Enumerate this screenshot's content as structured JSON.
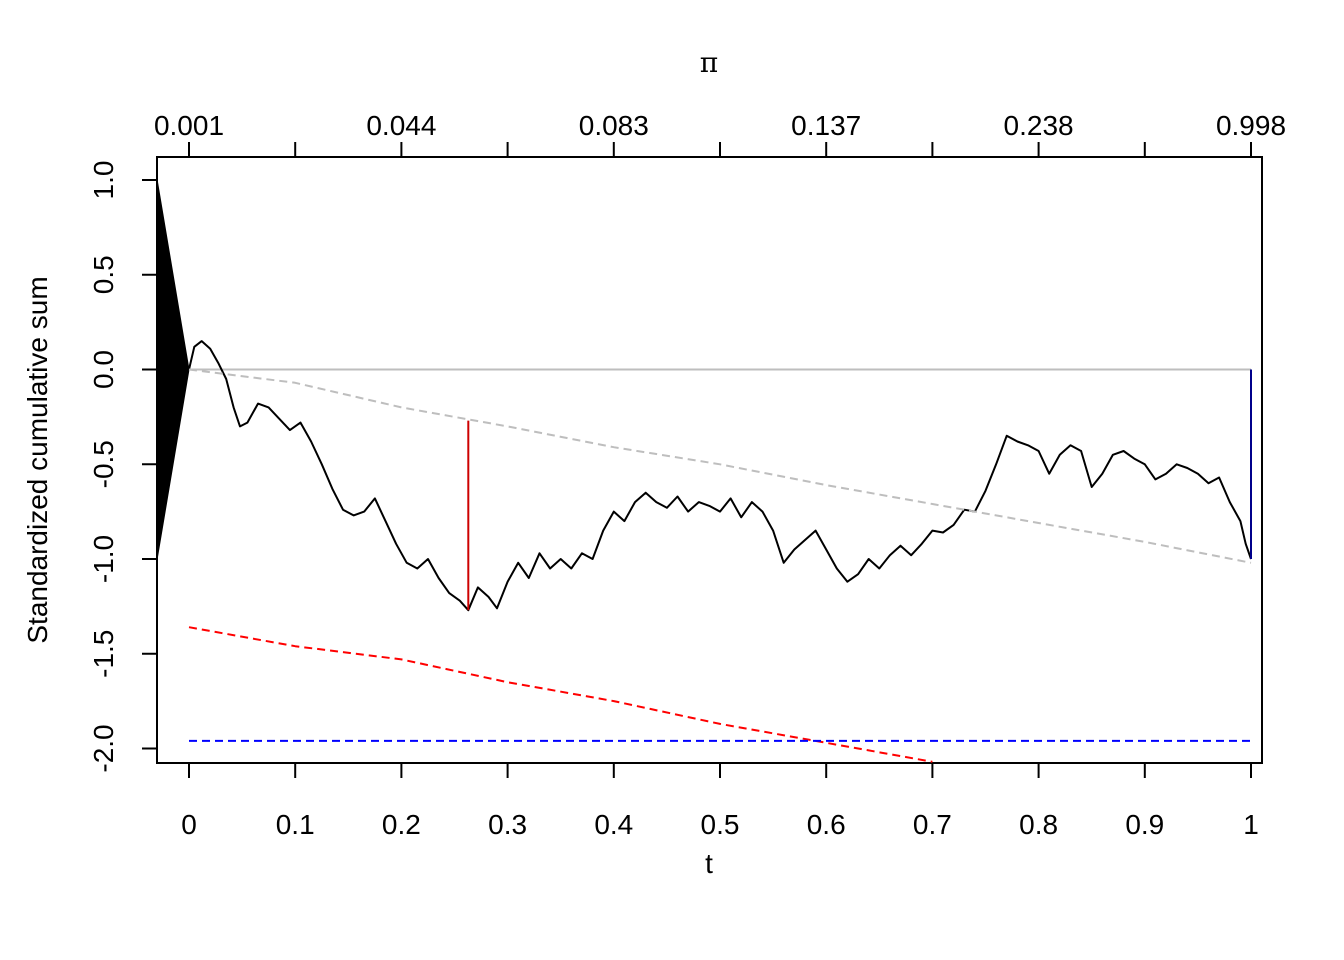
{
  "chart_data": {
    "type": "line",
    "xlabel": "t",
    "ylabel": "Standardized cumulative sum",
    "top_axis_label": "π",
    "xlim": [
      -0.03,
      1.01
    ],
    "ylim": [
      -2.07,
      1.07
    ],
    "x_ticks": [
      0,
      0.1,
      0.2,
      0.3,
      0.4,
      0.5,
      0.6,
      0.7,
      0.8,
      0.9,
      1
    ],
    "x_tick_labels": [
      "0",
      "0.1",
      "0.2",
      "0.3",
      "0.4",
      "0.5",
      "0.6",
      "0.7",
      "0.8",
      "0.9",
      "1"
    ],
    "y_ticks": [
      1.0,
      0.5,
      0.0,
      -0.5,
      -1.0,
      -1.5,
      -2.0
    ],
    "y_tick_labels": [
      "1.0",
      "0.5",
      "0.0",
      "-0.5",
      "-1.0",
      "-1.5",
      "-2.0"
    ],
    "top_ticks": [
      0,
      0.1,
      0.2,
      0.3,
      0.4,
      0.5,
      0.6,
      0.7,
      0.8,
      0.9,
      1
    ],
    "top_tick_labels": [
      "0.001",
      "",
      "0.044",
      "",
      "0.083",
      "",
      "0.137",
      "",
      "0.238",
      "",
      "0.998"
    ],
    "grid": false,
    "legend": "none",
    "colors": {
      "path": "#000000",
      "zero_line": "#bebebe",
      "grey_dashed": "#bebebe",
      "red": "#ff0000",
      "blue": "#0000ff",
      "dark_red": "#cd0000",
      "dark_blue": "#00008b"
    },
    "fan": {
      "x_start": -0.03,
      "x_end": 0.0,
      "y_top": 1.0,
      "y_bottom": -1.0,
      "y_tip": 0.0,
      "color": "#000000"
    },
    "zero_line": {
      "y": 0.0,
      "x": [
        0.0,
        1.0
      ]
    },
    "series": [
      {
        "style": "solid",
        "color": "#000000",
        "points": [
          [
            0.0,
            0.0
          ],
          [
            0.005,
            0.12
          ],
          [
            0.012,
            0.15
          ],
          [
            0.02,
            0.11
          ],
          [
            0.028,
            0.03
          ],
          [
            0.035,
            -0.05
          ],
          [
            0.042,
            -0.2
          ],
          [
            0.048,
            -0.3
          ],
          [
            0.055,
            -0.28
          ],
          [
            0.065,
            -0.18
          ],
          [
            0.075,
            -0.2
          ],
          [
            0.085,
            -0.26
          ],
          [
            0.095,
            -0.32
          ],
          [
            0.105,
            -0.28
          ],
          [
            0.115,
            -0.38
          ],
          [
            0.125,
            -0.5
          ],
          [
            0.135,
            -0.63
          ],
          [
            0.145,
            -0.74
          ],
          [
            0.155,
            -0.77
          ],
          [
            0.165,
            -0.75
          ],
          [
            0.175,
            -0.68
          ],
          [
            0.185,
            -0.8
          ],
          [
            0.195,
            -0.92
          ],
          [
            0.205,
            -1.02
          ],
          [
            0.215,
            -1.05
          ],
          [
            0.225,
            -1.0
          ],
          [
            0.235,
            -1.1
          ],
          [
            0.245,
            -1.18
          ],
          [
            0.255,
            -1.22
          ],
          [
            0.263,
            -1.27
          ],
          [
            0.272,
            -1.15
          ],
          [
            0.282,
            -1.2
          ],
          [
            0.29,
            -1.26
          ],
          [
            0.3,
            -1.12
          ],
          [
            0.31,
            -1.02
          ],
          [
            0.32,
            -1.1
          ],
          [
            0.33,
            -0.97
          ],
          [
            0.34,
            -1.05
          ],
          [
            0.35,
            -1.0
          ],
          [
            0.36,
            -1.05
          ],
          [
            0.37,
            -0.97
          ],
          [
            0.38,
            -1.0
          ],
          [
            0.39,
            -0.85
          ],
          [
            0.4,
            -0.75
          ],
          [
            0.41,
            -0.8
          ],
          [
            0.42,
            -0.7
          ],
          [
            0.43,
            -0.65
          ],
          [
            0.44,
            -0.7
          ],
          [
            0.45,
            -0.73
          ],
          [
            0.46,
            -0.67
          ],
          [
            0.47,
            -0.75
          ],
          [
            0.48,
            -0.7
          ],
          [
            0.49,
            -0.72
          ],
          [
            0.5,
            -0.75
          ],
          [
            0.51,
            -0.68
          ],
          [
            0.52,
            -0.78
          ],
          [
            0.53,
            -0.7
          ],
          [
            0.54,
            -0.75
          ],
          [
            0.55,
            -0.85
          ],
          [
            0.56,
            -1.02
          ],
          [
            0.57,
            -0.95
          ],
          [
            0.58,
            -0.9
          ],
          [
            0.59,
            -0.85
          ],
          [
            0.6,
            -0.95
          ],
          [
            0.61,
            -1.05
          ],
          [
            0.62,
            -1.12
          ],
          [
            0.63,
            -1.08
          ],
          [
            0.64,
            -1.0
          ],
          [
            0.65,
            -1.05
          ],
          [
            0.66,
            -0.98
          ],
          [
            0.67,
            -0.93
          ],
          [
            0.68,
            -0.98
          ],
          [
            0.69,
            -0.92
          ],
          [
            0.7,
            -0.85
          ],
          [
            0.71,
            -0.86
          ],
          [
            0.72,
            -0.82
          ],
          [
            0.73,
            -0.74
          ],
          [
            0.74,
            -0.75
          ],
          [
            0.75,
            -0.64
          ],
          [
            0.76,
            -0.5
          ],
          [
            0.77,
            -0.35
          ],
          [
            0.78,
            -0.38
          ],
          [
            0.79,
            -0.4
          ],
          [
            0.8,
            -0.43
          ],
          [
            0.81,
            -0.55
          ],
          [
            0.82,
            -0.45
          ],
          [
            0.83,
            -0.4
          ],
          [
            0.84,
            -0.43
          ],
          [
            0.85,
            -0.62
          ],
          [
            0.86,
            -0.55
          ],
          [
            0.87,
            -0.45
          ],
          [
            0.88,
            -0.43
          ],
          [
            0.89,
            -0.47
          ],
          [
            0.9,
            -0.5
          ],
          [
            0.91,
            -0.58
          ],
          [
            0.92,
            -0.55
          ],
          [
            0.93,
            -0.5
          ],
          [
            0.94,
            -0.52
          ],
          [
            0.95,
            -0.55
          ],
          [
            0.96,
            -0.6
          ],
          [
            0.97,
            -0.57
          ],
          [
            0.98,
            -0.7
          ],
          [
            0.99,
            -0.8
          ],
          [
            0.995,
            -0.92
          ],
          [
            1.0,
            -1.0
          ]
        ]
      },
      {
        "style": "dashed",
        "color": "#bebebe",
        "points": [
          [
            0.0,
            0.0
          ],
          [
            0.1,
            -0.07
          ],
          [
            0.2,
            -0.2
          ],
          [
            0.3,
            -0.3
          ],
          [
            0.4,
            -0.41
          ],
          [
            0.5,
            -0.5
          ],
          [
            0.6,
            -0.61
          ],
          [
            0.7,
            -0.71
          ],
          [
            0.8,
            -0.81
          ],
          [
            0.9,
            -0.91
          ],
          [
            1.0,
            -1.02
          ]
        ]
      },
      {
        "style": "dashed",
        "color": "#ff0000",
        "points": [
          [
            0.0,
            -1.36
          ],
          [
            0.1,
            -1.46
          ],
          [
            0.2,
            -1.53
          ],
          [
            0.3,
            -1.65
          ],
          [
            0.4,
            -1.75
          ],
          [
            0.5,
            -1.87
          ],
          [
            0.6,
            -1.97
          ],
          [
            0.7,
            -2.07
          ]
        ]
      },
      {
        "style": "dashed",
        "color": "#0000ff",
        "points": [
          [
            0.0,
            -1.96
          ],
          [
            1.0,
            -1.96
          ]
        ]
      }
    ],
    "segments": [
      {
        "x": 0.263,
        "y_from": -0.27,
        "y_to": -1.27,
        "color": "#cd0000"
      },
      {
        "x": 1.0,
        "y_from": 0.0,
        "y_to": -1.0,
        "color": "#00008b"
      }
    ]
  }
}
